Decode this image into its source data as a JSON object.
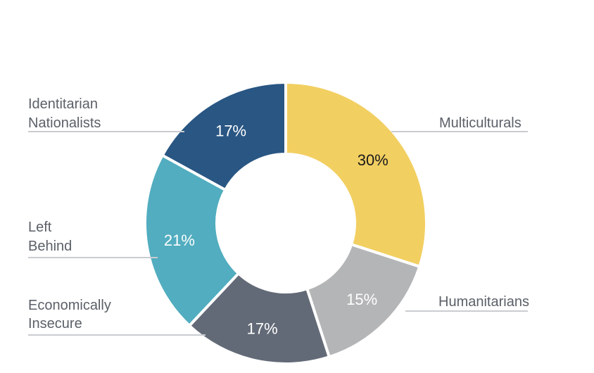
{
  "chart_data": {
    "type": "pie",
    "title": "",
    "legend": "none",
    "slices": [
      {
        "label": "Multiculturals",
        "value": 30,
        "value_label": "30%",
        "color": "#f2cf61",
        "text_color": "#1a1a1a"
      },
      {
        "label": "Humanitarians",
        "value": 15,
        "value_label": "15%",
        "color": "#b4b5b7",
        "text_color": "#ffffff"
      },
      {
        "label": "Economically Insecure",
        "value": 17,
        "value_label": "17%",
        "color": "#636a77",
        "text_color": "#ffffff"
      },
      {
        "label": "Left Behind",
        "value": 21,
        "value_label": "21%",
        "color": "#51adbf",
        "text_color": "#ffffff"
      },
      {
        "label": "Identitarian Nationalists",
        "value": 17,
        "value_label": "17%",
        "color": "#295683",
        "text_color": "#ffffff"
      }
    ]
  }
}
